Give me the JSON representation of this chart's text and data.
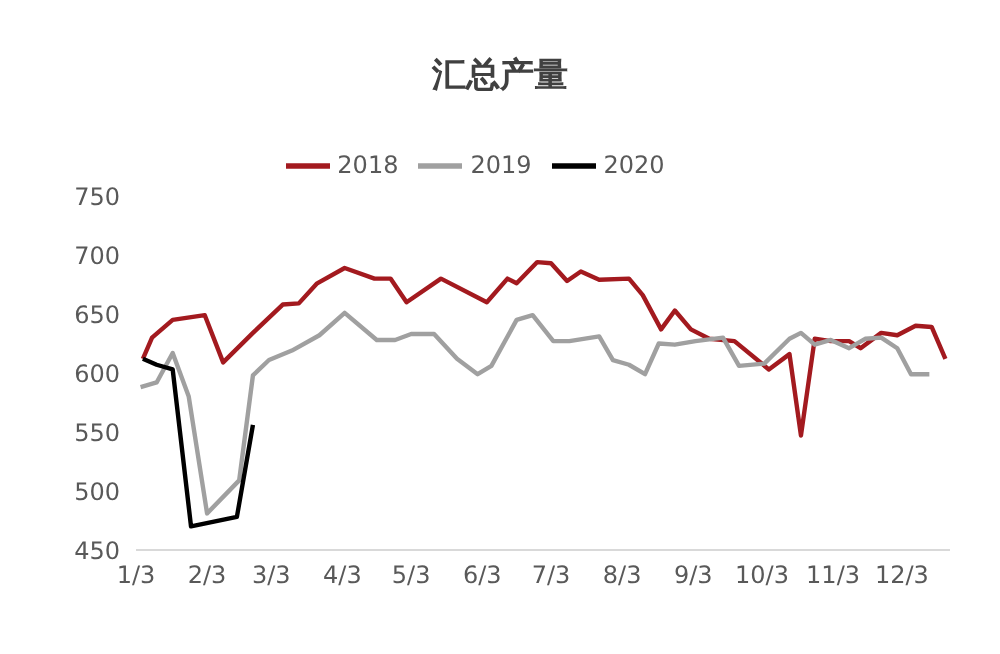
{
  "chart_data": {
    "type": "line",
    "title": "汇总产量",
    "legend": "top",
    "grid": false,
    "marker": "none",
    "line_style": "solid",
    "xlim": [
      "--01-03",
      "--12-24"
    ],
    "xticks": [
      {
        "value": "--01-03",
        "label": "1/3"
      },
      {
        "value": "--02-03",
        "label": "2/3"
      },
      {
        "value": "--03-03",
        "label": "3/3"
      },
      {
        "value": "--04-03",
        "label": "4/3"
      },
      {
        "value": "--05-03",
        "label": "5/3"
      },
      {
        "value": "--06-03",
        "label": "6/3"
      },
      {
        "value": "--07-03",
        "label": "7/3"
      },
      {
        "value": "--08-03",
        "label": "8/3"
      },
      {
        "value": "--09-03",
        "label": "9/3"
      },
      {
        "value": "--10-03",
        "label": "10/3"
      },
      {
        "value": "--11-03",
        "label": "11/3"
      },
      {
        "value": "--12-03",
        "label": "12/3"
      }
    ],
    "ylim": [
      450,
      750
    ],
    "yticks": [
      450,
      500,
      550,
      600,
      650,
      700,
      750
    ],
    "series": [
      {
        "name": "2018",
        "color": "#a31a1f",
        "x": [
          "--01-06",
          "--01-10",
          "--01-19",
          "--02-02",
          "--02-10",
          "--02-23",
          "--03-08",
          "--03-15",
          "--03-23",
          "--04-04",
          "--04-17",
          "--04-24",
          "--05-01",
          "--05-16",
          "--06-05",
          "--06-14",
          "--06-18",
          "--06-27",
          "--07-03",
          "--07-10",
          "--07-16",
          "--07-24",
          "--08-06",
          "--08-12",
          "--08-20",
          "--08-26",
          "--09-02",
          "--09-10",
          "--09-21",
          "--10-06",
          "--10-15",
          "--10-20",
          "--10-26",
          "--11-02",
          "--11-10",
          "--11-15",
          "--11-24",
          "--12-01",
          "--12-09",
          "--12-16",
          "--12-22"
        ],
        "values": [
          612,
          630,
          645,
          649,
          609,
          634,
          658,
          659,
          676,
          689,
          680,
          680,
          660,
          680,
          660,
          680,
          676,
          694,
          693,
          678,
          686,
          679,
          680,
          666,
          637,
          653,
          637,
          629,
          627,
          603,
          616,
          547,
          629,
          627,
          627,
          621,
          634,
          632,
          640,
          639,
          612
        ]
      },
      {
        "name": "2019",
        "color": "#a0a0a0",
        "x": [
          "--01-05",
          "--01-12",
          "--01-19",
          "--01-26",
          "--02-03",
          "--02-17",
          "--02-23",
          "--03-02",
          "--03-12",
          "--03-24",
          "--04-04",
          "--04-18",
          "--04-26",
          "--05-03",
          "--05-13",
          "--05-23",
          "--06-01",
          "--06-07",
          "--06-18",
          "--06-25",
          "--07-04",
          "--07-11",
          "--07-24",
          "--07-30",
          "--08-06",
          "--08-13",
          "--08-19",
          "--08-26",
          "--09-04",
          "--09-16",
          "--09-23",
          "--10-04",
          "--10-15",
          "--10-20",
          "--10-26",
          "--11-02",
          "--11-10",
          "--11-17",
          "--11-24",
          "--12-01",
          "--12-07",
          "--12-15"
        ],
        "values": [
          588,
          592,
          617,
          580,
          481,
          509,
          598,
          611,
          619,
          632,
          651,
          628,
          628,
          633,
          633,
          612,
          599,
          606,
          645,
          649,
          627,
          627,
          631,
          611,
          607,
          599,
          625,
          624,
          627,
          630,
          606,
          608,
          629,
          634,
          624,
          628,
          621,
          629,
          630,
          621,
          599,
          599
        ]
      },
      {
        "name": "2020",
        "color": "#000000",
        "x": [
          "--01-06",
          "--01-12",
          "--01-19",
          "--01-27",
          "--02-16",
          "--02-23"
        ],
        "values": [
          612,
          607,
          603,
          470,
          478,
          556
        ]
      }
    ]
  }
}
